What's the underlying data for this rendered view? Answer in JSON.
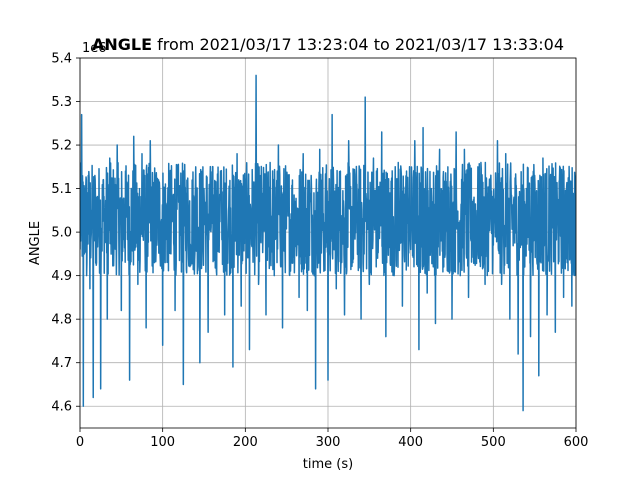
{
  "chart_data": {
    "type": "line",
    "title_bold": "ANGLE",
    "title_rest": " from 2021/03/17 13:23:04 to 2021/03/17 13:33:04",
    "xlabel": "time (s)",
    "ylabel": "ANGLE",
    "y_offset_label": "1e6",
    "xlim": [
      0,
      600
    ],
    "ylim": [
      4.55,
      5.4
    ],
    "xticks": [
      0,
      100,
      200,
      300,
      400,
      500,
      600
    ],
    "xtick_labels": [
      "0",
      "100",
      "200",
      "300",
      "400",
      "500",
      "600"
    ],
    "yticks": [
      4.6,
      4.7,
      4.8,
      4.9,
      5.0,
      5.1,
      5.2,
      5.3,
      5.4
    ],
    "ytick_labels": [
      "4.6",
      "4.7",
      "4.8",
      "4.9",
      "5.0",
      "5.1",
      "5.2",
      "5.3",
      "5.4"
    ],
    "grid": true,
    "line_color": "#1f77b4",
    "series": [
      {
        "x": [
          0,
          2,
          4,
          6,
          8,
          10,
          12,
          14,
          16,
          18,
          20,
          22,
          25,
          28,
          30,
          33,
          36,
          40,
          45,
          50,
          55,
          60,
          65,
          70,
          75,
          80,
          85,
          90,
          95,
          100,
          105,
          110,
          115,
          120,
          125,
          130,
          135,
          140,
          145,
          150,
          155,
          160,
          165,
          170,
          175,
          180,
          185,
          190,
          195,
          200,
          205,
          210,
          213,
          216,
          220,
          225,
          230,
          235,
          240,
          245,
          250,
          255,
          260,
          265,
          270,
          275,
          280,
          285,
          290,
          295,
          300,
          305,
          310,
          315,
          320,
          325,
          330,
          335,
          340,
          345,
          350,
          355,
          360,
          365,
          370,
          375,
          380,
          385,
          390,
          395,
          400,
          405,
          410,
          415,
          420,
          425,
          430,
          435,
          440,
          445,
          450,
          455,
          460,
          465,
          470,
          475,
          480,
          485,
          490,
          495,
          500,
          505,
          510,
          515,
          520,
          525,
          530,
          533,
          536,
          540,
          545,
          550,
          555,
          560,
          565,
          570,
          575,
          580,
          585,
          590,
          595,
          600
        ],
        "y": [
          4.96,
          5.27,
          4.6,
          5.1,
          4.9,
          5.13,
          4.87,
          5.05,
          4.62,
          5.13,
          4.93,
          5.08,
          4.64,
          5.12,
          4.98,
          4.8,
          5.17,
          4.93,
          5.2,
          4.82,
          5.14,
          4.66,
          5.22,
          4.88,
          5.18,
          4.78,
          5.21,
          4.93,
          5.12,
          4.74,
          5.06,
          4.95,
          4.82,
          5.1,
          4.65,
          5.05,
          4.96,
          5.15,
          4.7,
          5.1,
          4.77,
          5.02,
          4.91,
          5.14,
          4.81,
          5.06,
          4.69,
          5.18,
          4.83,
          5.12,
          4.73,
          5.02,
          5.36,
          4.88,
          5.07,
          4.81,
          5.16,
          4.9,
          5.2,
          4.78,
          5.13,
          4.94,
          5.07,
          4.85,
          5.18,
          4.82,
          5.1,
          4.64,
          5.19,
          4.91,
          4.66,
          5.27,
          4.87,
          5.14,
          4.81,
          5.21,
          4.93,
          5.11,
          4.8,
          5.31,
          4.88,
          5.17,
          4.94,
          5.23,
          4.76,
          5.09,
          4.9,
          5.16,
          4.83,
          5.14,
          4.96,
          5.21,
          4.73,
          5.24,
          4.86,
          5.1,
          4.79,
          5.19,
          4.92,
          5.15,
          4.8,
          5.23,
          4.9,
          5.19,
          4.85,
          5.07,
          4.98,
          5.16,
          4.88,
          5.09,
          4.97,
          5.21,
          4.88,
          5.18,
          4.8,
          5.08,
          4.72,
          5.05,
          4.59,
          5.1,
          4.76,
          5.13,
          4.67,
          5.17,
          4.81,
          5.09,
          4.77,
          5.12,
          4.85,
          5.08,
          4.83,
          5.13
        ]
      }
    ]
  }
}
